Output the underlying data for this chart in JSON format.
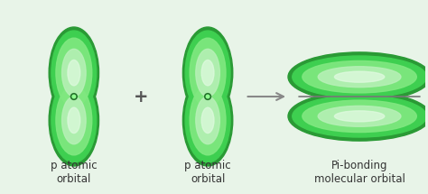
{
  "bg_color": "#e8f4e8",
  "green_dark": "#2a9a35",
  "green_mid": "#3ecf50",
  "green_light": "#80e880",
  "green_lighter": "#b8f0b8",
  "green_white": "#e0fae0",
  "label1": "p atomic\norbital",
  "label2": "p atomic\norbital",
  "label3": "Pi-bonding\nmolecular orbital",
  "plus_symbol": "+",
  "arrow_color": "#888888",
  "label_fontsize": 8.5,
  "label_color": "#333333",
  "plus_fontsize": 14,
  "separator_color": "#777777"
}
